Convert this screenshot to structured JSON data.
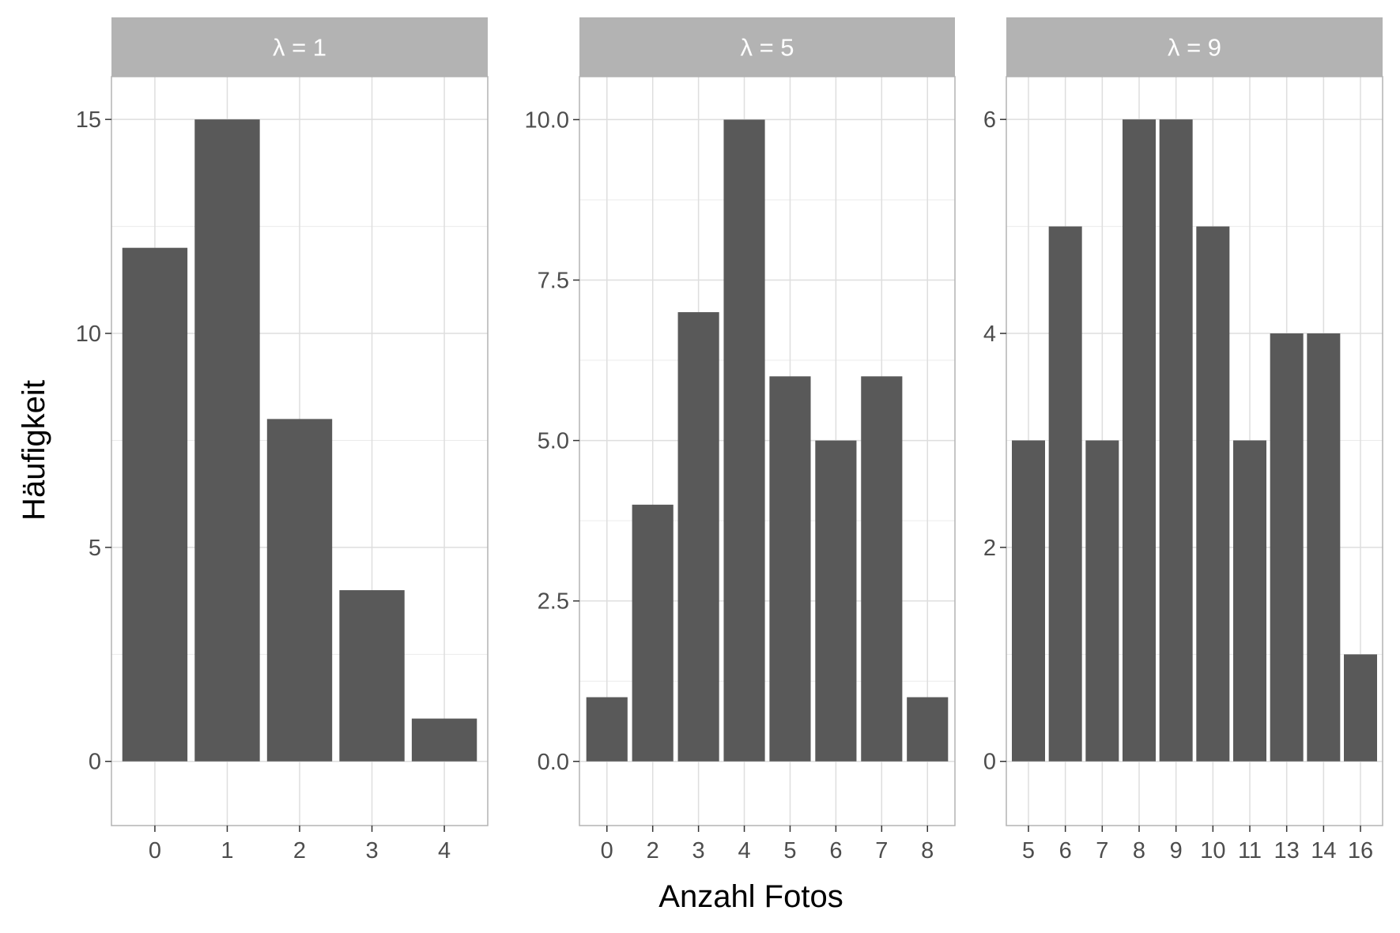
{
  "chart_data": {
    "type": "bar",
    "facet_layout": "1 row, 3 columns, free scales",
    "xlabel": "Anzahl Fotos",
    "ylabel": "Häufigkeit",
    "bar_color": "#595959",
    "strip_color": "#b3b3b3",
    "grid": true,
    "panels": [
      {
        "strip": "λ = 1",
        "categories": [
          "0",
          "1",
          "2",
          "3",
          "4"
        ],
        "values": [
          12,
          15,
          8,
          4,
          1
        ],
        "ylim": [
          -1.5,
          16
        ],
        "y_ticks": [
          0,
          5,
          10,
          15
        ],
        "y_tick_labels": [
          "0",
          "5",
          "10",
          "15"
        ]
      },
      {
        "strip": "λ = 5",
        "categories": [
          "0",
          "2",
          "3",
          "4",
          "5",
          "6",
          "7",
          "8"
        ],
        "values": [
          1,
          4,
          7,
          10,
          6,
          5,
          6,
          1
        ],
        "ylim": [
          -1,
          10.67
        ],
        "y_ticks": [
          0,
          2.5,
          5,
          7.5,
          10
        ],
        "y_tick_labels": [
          "0.0",
          "2.5",
          "5.0",
          "7.5",
          "10.0"
        ]
      },
      {
        "strip": "λ = 9",
        "categories": [
          "5",
          "6",
          "7",
          "8",
          "9",
          "10",
          "11",
          "13",
          "14",
          "16"
        ],
        "values": [
          3,
          5,
          3,
          6,
          6,
          5,
          3,
          4,
          4,
          1
        ],
        "ylim": [
          -0.6,
          6.4
        ],
        "y_ticks": [
          0,
          2,
          4,
          6
        ],
        "y_tick_labels": [
          "0",
          "2",
          "4",
          "6"
        ]
      }
    ]
  }
}
